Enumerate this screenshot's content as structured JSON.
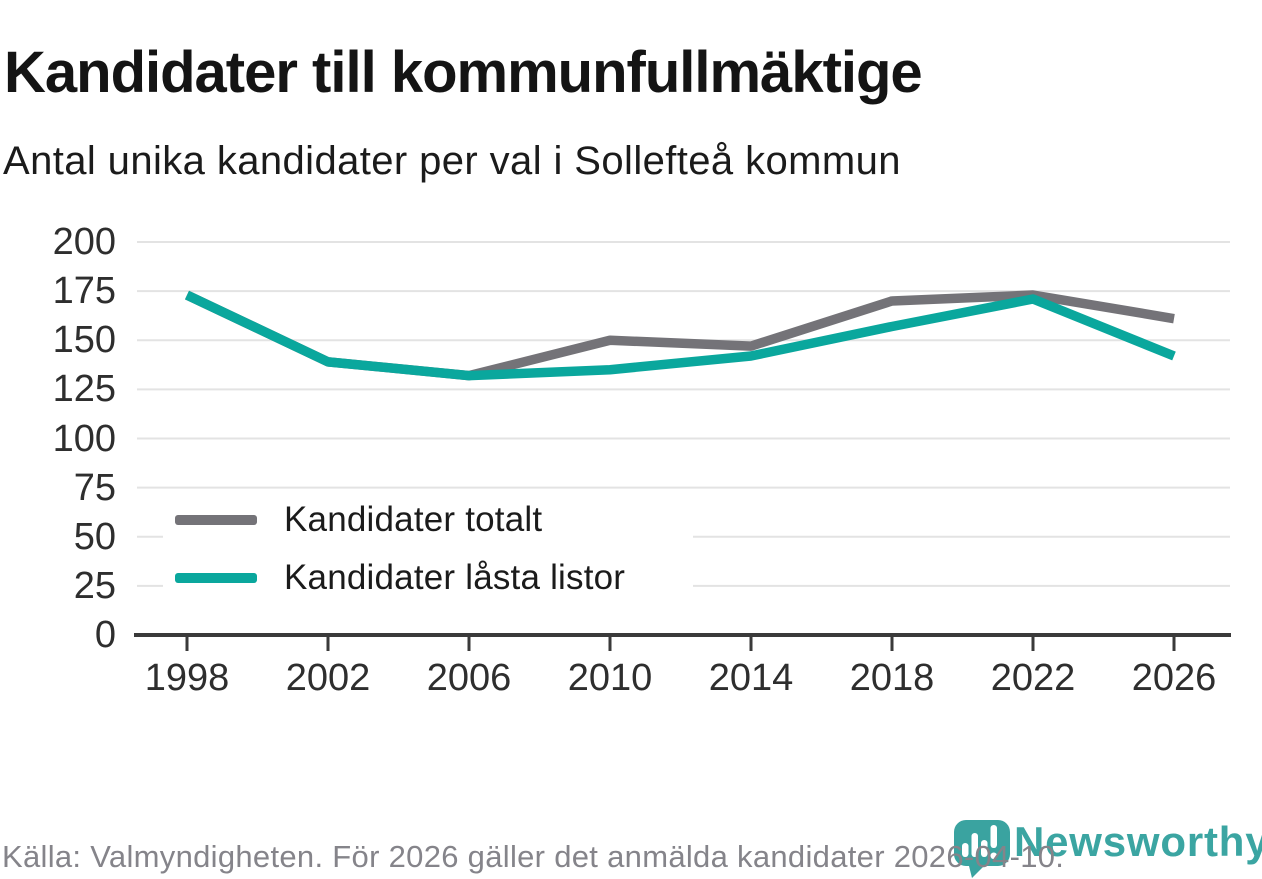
{
  "title": "Kandidater till kommunfullmäktige",
  "subtitle": "Antal unika kandidater per val i Sollefteå kommun",
  "source_note": "Källa: Valmyndigheten. För 2026 gäller det anmälda kandidater 2026-04-10.",
  "branding": {
    "wordmark": "Newsworthy",
    "logo_icon": "newsworthy-pin-barchart-icon",
    "brand_color": "#3ba5a2"
  },
  "colors": {
    "total_line": "#747378",
    "locked_line": "#0aa79d",
    "grid": "#e3e3e3",
    "axis": "#3a3a3a",
    "title_text": "#141414",
    "axis_text": "#2e2e2e",
    "source_text": "#85848a",
    "background": "#ffffff"
  },
  "chart_data": {
    "type": "line",
    "title": "Kandidater till kommunfullmäktige",
    "subtitle": "Antal unika kandidater per val i Sollefteå kommun",
    "categories": [
      "1998",
      "2002",
      "2006",
      "2010",
      "2014",
      "2018",
      "2022",
      "2026"
    ],
    "series": [
      {
        "name": "Kandidater totalt",
        "color": "#747378",
        "values": [
          173,
          139,
          132,
          150,
          147,
          170,
          173,
          161
        ]
      },
      {
        "name": "Kandidater låsta listor",
        "color": "#0aa79d",
        "values": [
          173,
          139,
          132,
          135,
          142,
          157,
          171,
          142
        ]
      }
    ],
    "xlabel": "",
    "ylabel": "",
    "ylim": [
      0,
      200
    ],
    "yticks": [
      0,
      25,
      50,
      75,
      100,
      125,
      150,
      175,
      200
    ],
    "grid": "horizontal",
    "legend_position": "inside-bottom-left"
  }
}
